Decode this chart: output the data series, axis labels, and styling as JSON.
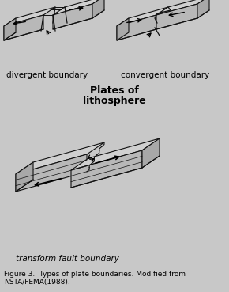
{
  "bg_color": "#c8c8c8",
  "plate_top_color": "#d0d0d0",
  "plate_front_color": "#b8b8b8",
  "plate_side_color": "#a8a8a8",
  "plate_edge_color": "#111111",
  "title_text": "Plates of\nlithosphere",
  "title_fontsize": 9,
  "label1": "divergent boundary",
  "label2": "convergent boundary",
  "label3": "transform fault boundary",
  "caption": "Figure 3.  Types of plate boundaries. Modified from\nNSTA/FEMA(1988).",
  "caption_fontsize": 6.5,
  "label_fontsize": 7.5
}
